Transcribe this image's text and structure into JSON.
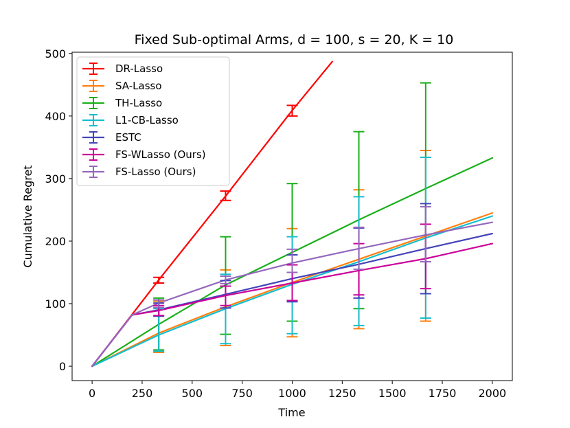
{
  "chart_data": {
    "type": "line",
    "title": "Fixed Sub-optimal Arms, d = 100, s = 20, K = 10",
    "xlabel": "Time",
    "ylabel": "Cumulative Regret",
    "xlim": [
      -100,
      2100
    ],
    "ylim": [
      -23,
      502
    ],
    "xticks": [
      0,
      250,
      500,
      750,
      1000,
      1250,
      1500,
      1750,
      2000
    ],
    "yticks": [
      0,
      100,
      200,
      300,
      400,
      500
    ],
    "legend_position": "upper-left",
    "series": [
      {
        "name": "DR-Lasso",
        "color": "#ff0000",
        "x": [
          0,
          333,
          667,
          1000,
          1200
        ],
        "y": [
          0,
          138,
          272,
          409,
          487
        ],
        "errorbars": [
          {
            "x": 333,
            "y": 138,
            "low": 133,
            "high": 142
          },
          {
            "x": 667,
            "y": 272,
            "low": 265,
            "high": 280
          },
          {
            "x": 1000,
            "y": 409,
            "low": 400,
            "high": 417
          }
        ]
      },
      {
        "name": "SA-Lasso",
        "color": "#ff7f0e",
        "x": [
          0,
          333,
          667,
          1000,
          1333,
          1667,
          2000
        ],
        "y": [
          0,
          53,
          95,
          134,
          171,
          208,
          245
        ],
        "errorbars": [
          {
            "x": 333,
            "y": 53,
            "low": 22,
            "high": 104
          },
          {
            "x": 667,
            "y": 95,
            "low": 33,
            "high": 154
          },
          {
            "x": 1000,
            "y": 134,
            "low": 47,
            "high": 220
          },
          {
            "x": 1333,
            "y": 171,
            "low": 60,
            "high": 282
          },
          {
            "x": 1667,
            "y": 208,
            "low": 72,
            "high": 345
          }
        ]
      },
      {
        "name": "TH-Lasso",
        "color": "#1ab01a",
        "x": [
          0,
          333,
          667,
          1000,
          1333,
          1667,
          2000
        ],
        "y": [
          0,
          67,
          130,
          182,
          234,
          284,
          333
        ],
        "errorbars": [
          {
            "x": 333,
            "y": 67,
            "low": 26,
            "high": 109
          },
          {
            "x": 667,
            "y": 130,
            "low": 51,
            "high": 207
          },
          {
            "x": 1000,
            "y": 182,
            "low": 72,
            "high": 292
          },
          {
            "x": 1333,
            "y": 234,
            "low": 92,
            "high": 375
          },
          {
            "x": 1667,
            "y": 284,
            "low": 116,
            "high": 453
          }
        ]
      },
      {
        "name": "L1-CB-Lasso",
        "color": "#17becf",
        "x": [
          0,
          333,
          667,
          1000,
          1333,
          1667,
          2000
        ],
        "y": [
          0,
          50,
          92,
          131,
          167,
          205,
          240
        ],
        "errorbars": [
          {
            "x": 333,
            "y": 50,
            "low": 24,
            "high": 92
          },
          {
            "x": 667,
            "y": 92,
            "low": 36,
            "high": 147
          },
          {
            "x": 1000,
            "y": 131,
            "low": 52,
            "high": 207
          },
          {
            "x": 1333,
            "y": 167,
            "low": 65,
            "high": 271
          },
          {
            "x": 1667,
            "y": 205,
            "low": 77,
            "high": 334
          }
        ]
      },
      {
        "name": "ESTC",
        "color": "#4444bb",
        "x": [
          0,
          200,
          333,
          667,
          1000,
          1333,
          1667,
          2000
        ],
        "y": [
          0,
          82,
          90,
          115,
          140,
          163,
          188,
          212
        ],
        "errorbars": [
          {
            "x": 333,
            "y": 90,
            "low": 80,
            "high": 101
          },
          {
            "x": 667,
            "y": 115,
            "low": 93,
            "high": 137
          },
          {
            "x": 1000,
            "y": 140,
            "low": 103,
            "high": 178
          },
          {
            "x": 1333,
            "y": 163,
            "low": 109,
            "high": 221
          },
          {
            "x": 1667,
            "y": 188,
            "low": 116,
            "high": 260
          }
        ]
      },
      {
        "name": "FS-WLasso (Ours)",
        "color": "#cc0099",
        "x": [
          0,
          200,
          333,
          667,
          1000,
          1333,
          1667,
          2000
        ],
        "y": [
          0,
          82,
          89,
          113,
          133,
          153,
          172,
          196
        ],
        "errorbars": [
          {
            "x": 333,
            "y": 89,
            "low": 81,
            "high": 97
          },
          {
            "x": 667,
            "y": 113,
            "low": 97,
            "high": 128
          },
          {
            "x": 1000,
            "y": 133,
            "low": 105,
            "high": 162
          },
          {
            "x": 1333,
            "y": 153,
            "low": 114,
            "high": 196
          },
          {
            "x": 1667,
            "y": 172,
            "low": 124,
            "high": 227
          }
        ]
      },
      {
        "name": "FS-Lasso (Ours)",
        "color": "#9467bd",
        "x": [
          0,
          200,
          333,
          667,
          1000,
          1333,
          1667,
          2000
        ],
        "y": [
          0,
          82,
          101,
          138,
          165,
          188,
          210,
          230
        ],
        "errorbars": [
          {
            "x": 333,
            "y": 101,
            "low": 94,
            "high": 106
          },
          {
            "x": 667,
            "y": 138,
            "low": 132,
            "high": 144
          },
          {
            "x": 1000,
            "y": 165,
            "low": 150,
            "high": 187
          },
          {
            "x": 1333,
            "y": 188,
            "low": 155,
            "high": 222
          },
          {
            "x": 1667,
            "y": 210,
            "low": 167,
            "high": 255
          }
        ]
      }
    ]
  }
}
